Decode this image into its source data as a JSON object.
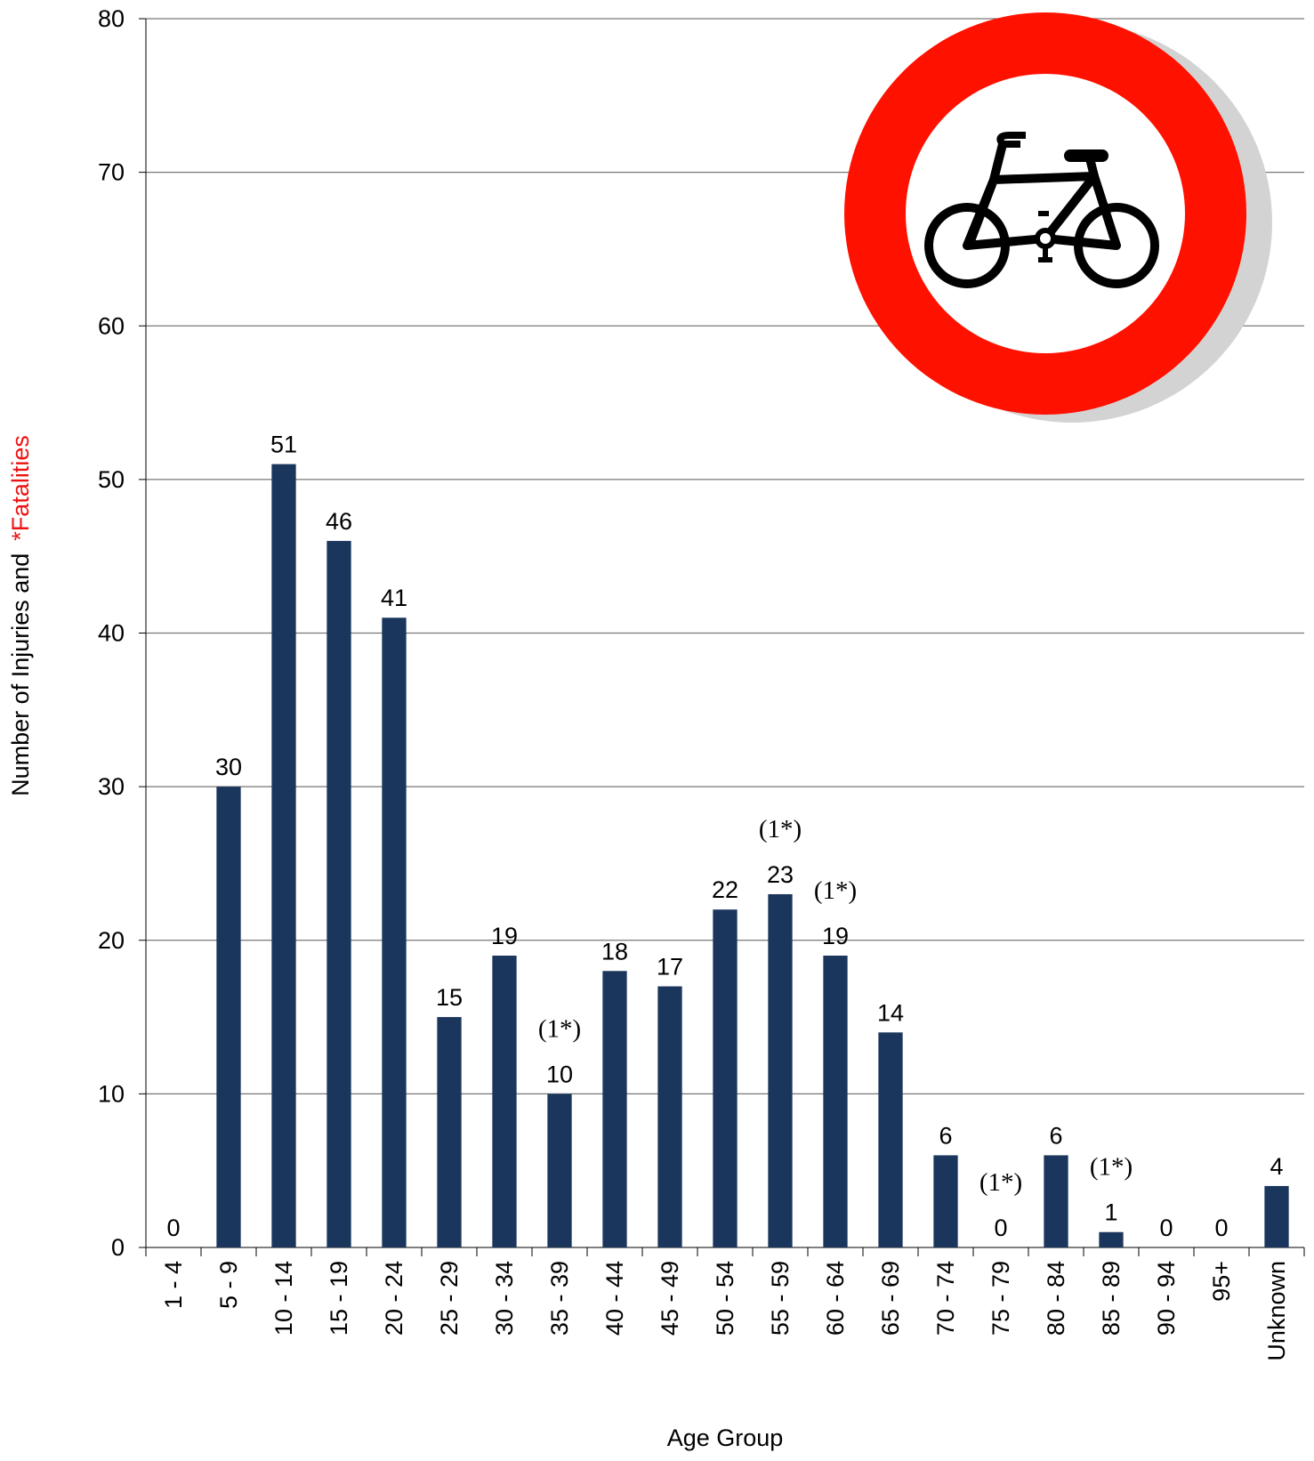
{
  "chart_data": {
    "type": "bar",
    "x_label": "Age Group",
    "y_label_parts": [
      "Number of Injuries and",
      "*Fatalities"
    ],
    "categories": [
      "1 - 4",
      "5 - 9",
      "10 - 14",
      "15 - 19",
      "20 - 24",
      "25 - 29",
      "30 - 34",
      "35 - 39",
      "40 - 44",
      "45 - 49",
      "50 - 54",
      "55 - 59",
      "60 - 64",
      "65 - 69",
      "70 - 74",
      "75 - 79",
      "80 - 84",
      "85 - 89",
      "90 - 94",
      "95+",
      "Unknown"
    ],
    "values": [
      0,
      30,
      51,
      46,
      41,
      15,
      19,
      10,
      18,
      17,
      22,
      23,
      19,
      14,
      6,
      0,
      6,
      1,
      0,
      0,
      4
    ],
    "fatalities": [
      null,
      null,
      null,
      null,
      null,
      null,
      null,
      1,
      null,
      null,
      null,
      1,
      1,
      null,
      null,
      1,
      null,
      1,
      null,
      null,
      null
    ],
    "fatality_labels": [
      null,
      null,
      null,
      null,
      null,
      null,
      null,
      "(1*)",
      null,
      null,
      null,
      "(1*)",
      "(1*)",
      null,
      null,
      "(1*)",
      null,
      "(1*)",
      null,
      null,
      null
    ],
    "color": "#1b365d",
    "fatality_color": "#ee1111",
    "ylim": [
      0,
      80
    ],
    "yticks": [
      0,
      10,
      20,
      30,
      40,
      50,
      60,
      70,
      80
    ],
    "grid": true
  }
}
